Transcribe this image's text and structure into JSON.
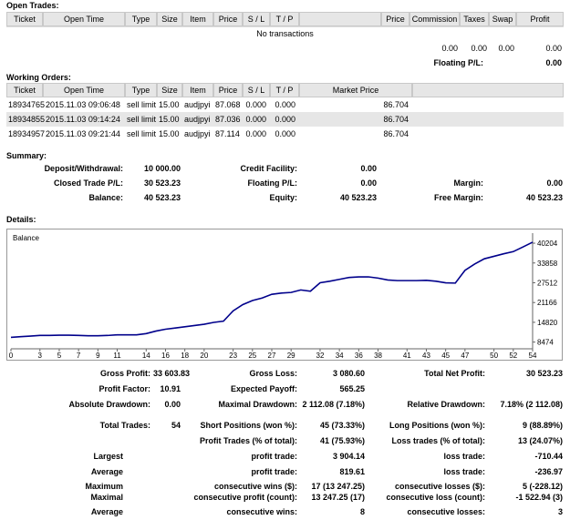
{
  "open_trades": {
    "title": "Open Trades:",
    "headers": [
      "Ticket",
      "Open Time",
      "Type",
      "Size",
      "Item",
      "Price",
      "S / L",
      "T / P",
      null,
      "Price",
      "Commission",
      "Taxes",
      "Swap",
      "Profit"
    ],
    "empty": "No transactions",
    "totals": [
      "0.00",
      "0.00",
      "0.00",
      "0.00"
    ],
    "floating_label": "Floating P/L:",
    "floating_value": "0.00"
  },
  "working_orders": {
    "title": "Working Orders:",
    "headers": [
      "Ticket",
      "Open Time",
      "Type",
      "Size",
      "Item",
      "Price",
      "S / L",
      "T / P",
      "Market Price",
      null
    ],
    "rows": [
      [
        "18934765",
        "2015.11.03 09:06:48",
        "sell limit",
        "15.00",
        "audjpyi",
        "87.068",
        "0.000",
        "0.000",
        "86.704"
      ],
      [
        "18934855",
        "2015.11.03 09:14:24",
        "sell limit",
        "15.00",
        "audjpyi",
        "87.036",
        "0.000",
        "0.000",
        "86.704"
      ],
      [
        "18934957",
        "2015.11.03 09:21:44",
        "sell limit",
        "15.00",
        "audjpyi",
        "87.114",
        "0.000",
        "0.000",
        "86.704"
      ]
    ]
  },
  "summary": {
    "title": "Summary:",
    "rows": [
      [
        {
          "label": "Deposit/Withdrawal:",
          "value": "10 000.00"
        },
        {
          "label": "Credit Facility:",
          "value": "0.00"
        },
        null
      ],
      [
        {
          "label": "Closed Trade P/L:",
          "value": "30 523.23"
        },
        {
          "label": "Floating P/L:",
          "value": "0.00"
        },
        {
          "label": "Margin:",
          "value": "0.00"
        }
      ],
      [
        {
          "label": "Balance:",
          "value": "40 523.23"
        },
        {
          "label": "Equity:",
          "value": "40 523.23"
        },
        {
          "label": "Free Margin:",
          "value": "40 523.23"
        }
      ]
    ]
  },
  "details": {
    "title": "Details:",
    "rows": [
      [
        {
          "label": "Gross Profit:",
          "value": "33 603.83"
        },
        {
          "label": "Gross Loss:",
          "value": "3 080.60"
        },
        {
          "label": "Total Net Profit:",
          "value": "30 523.23"
        }
      ],
      [
        {
          "label": "Profit Factor:",
          "value": "10.91"
        },
        {
          "label": "Expected Payoff:",
          "value": "565.25"
        },
        null
      ],
      [
        {
          "label": "Absolute Drawdown:",
          "value": "0.00"
        },
        {
          "label": "Maximal Drawdown:",
          "value": "2 112.08 (7.18%)"
        },
        {
          "label": "Relative Drawdown:",
          "value": "7.18% (2 112.08)"
        }
      ],
      [
        {
          "label": "Total Trades:",
          "value": "54"
        },
        {
          "label": "Short Positions (won %):",
          "value": "45 (73.33%)"
        },
        {
          "label": "Long Positions (won %):",
          "value": "9 (88.89%)"
        }
      ],
      [
        null,
        {
          "label": "Profit Trades (% of total):",
          "value": "41 (75.93%)"
        },
        {
          "label": "Loss trades (% of total):",
          "value": "13 (24.07%)"
        }
      ],
      [
        {
          "label": "Largest"
        },
        {
          "label": "profit trade:",
          "value": "3 904.14"
        },
        {
          "label": "loss trade:",
          "value": "-710.44"
        }
      ],
      [
        {
          "label": "Average"
        },
        {
          "label": "profit trade:",
          "value": "819.61"
        },
        {
          "label": "loss trade:",
          "value": "-236.97"
        }
      ],
      [
        {
          "label": "Maximum"
        },
        {
          "label": "consecutive wins ($):",
          "value": "17 (13 247.25)"
        },
        {
          "label": "consecutive losses ($):",
          "value": "5 (-228.12)"
        }
      ],
      [
        {
          "label": "Maximal"
        },
        {
          "label": "consecutive profit (count):",
          "value": "13 247.25 (17)"
        },
        {
          "label": "consecutive loss (count):",
          "value": "-1 522.94 (3)"
        }
      ],
      [
        {
          "label": "Average"
        },
        {
          "label": "consecutive wins:",
          "value": "8"
        },
        {
          "label": "consecutive losses:",
          "value": "3"
        }
      ]
    ]
  },
  "chart_data": {
    "type": "line",
    "x": [
      0,
      1,
      2,
      3,
      4,
      5,
      6,
      7,
      8,
      9,
      10,
      11,
      12,
      13,
      14,
      15,
      16,
      17,
      18,
      19,
      20,
      21,
      22,
      23,
      24,
      25,
      26,
      27,
      28,
      29,
      30,
      31,
      32,
      33,
      34,
      35,
      36,
      37,
      38,
      39,
      40,
      41,
      42,
      43,
      44,
      45,
      46,
      47,
      48,
      49,
      50,
      51,
      52,
      53,
      54
    ],
    "series": [
      {
        "name": "Balance",
        "color": "#00008b",
        "values": [
          10000,
          10200,
          10400,
          10600,
          10600,
          10700,
          10700,
          10600,
          10500,
          10500,
          10600,
          10800,
          10800,
          10800,
          11200,
          12000,
          12600,
          13000,
          13400,
          13800,
          14200,
          14800,
          15200,
          18500,
          20500,
          21800,
          22600,
          23800,
          24200,
          24400,
          25200,
          24800,
          27500,
          28000,
          28600,
          29200,
          29400,
          29400,
          29000,
          28400,
          28200,
          28200,
          28200,
          28300,
          28000,
          27500,
          27400,
          31500,
          33500,
          35200,
          36000,
          36800,
          37500,
          39000,
          40523
        ]
      }
    ],
    "xlim": [
      0,
      54
    ],
    "xticks": [
      0,
      3,
      5,
      7,
      9,
      11,
      14,
      16,
      18,
      20,
      23,
      25,
      27,
      29,
      32,
      34,
      36,
      38,
      41,
      43,
      45,
      47,
      50,
      52,
      54
    ],
    "ylim": [
      6323,
      43430
    ],
    "yticks": [
      8474,
      14820,
      21166,
      27512,
      33858,
      40204
    ]
  }
}
